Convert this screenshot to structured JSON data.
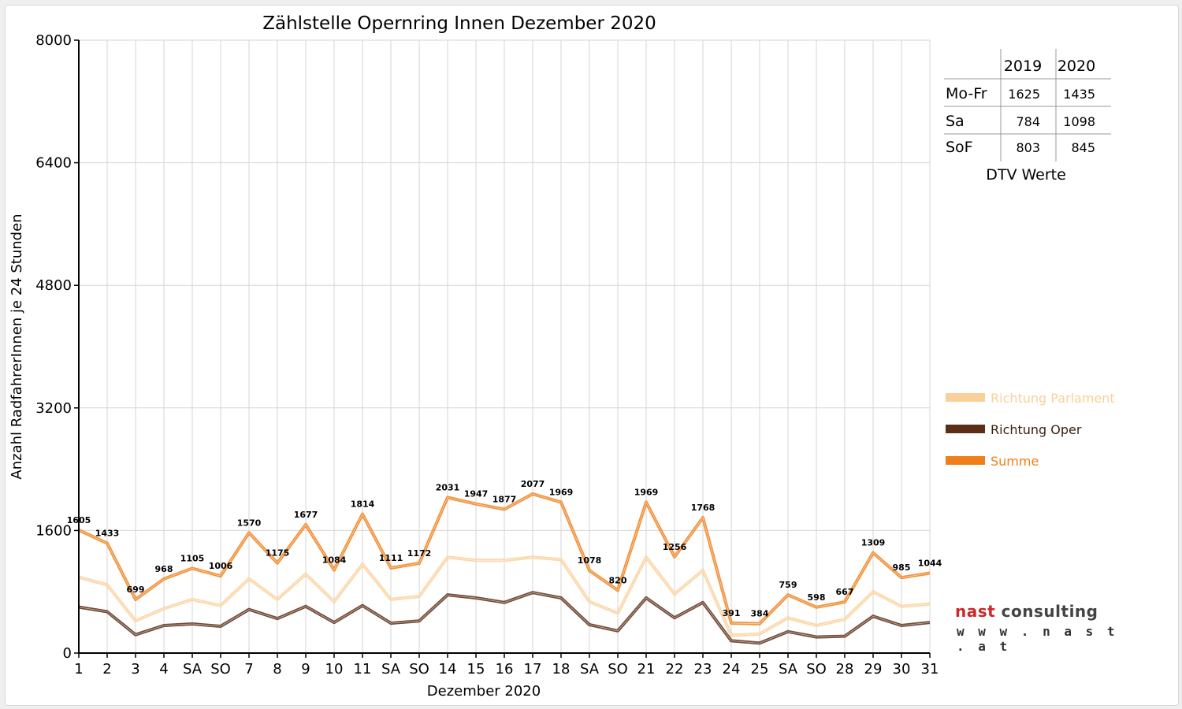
{
  "chart_data": {
    "type": "line",
    "title": "Zählstelle Opernring Innen Dezember 2020",
    "xlabel": "Dezember 2020",
    "ylabel": "Anzahl RadfahrerInnen je 24 Stunden",
    "ylim": [
      0,
      8000
    ],
    "yticks": [
      "0",
      "1600",
      "3200",
      "4800",
      "6400",
      "8000"
    ],
    "grid": true,
    "legend_position": "right",
    "categories": [
      "1",
      "2",
      "3",
      "4",
      "SA",
      "SO",
      "7",
      "8",
      "9",
      "10",
      "11",
      "SA",
      "SO",
      "14",
      "15",
      "16",
      "17",
      "18",
      "SA",
      "SO",
      "21",
      "22",
      "23",
      "24",
      "25",
      "SA",
      "SO",
      "28",
      "29",
      "30",
      "31"
    ],
    "red_categories": [
      5,
      7,
      12,
      19,
      24,
      26
    ],
    "series": [
      {
        "name": "Richtung Parlament",
        "color": "#fad09a",
        "values": [
          990,
          890,
          420,
          580,
          700,
          620,
          970,
          700,
          1030,
          670,
          1160,
          700,
          740,
          1250,
          1210,
          1210,
          1250,
          1220,
          670,
          520,
          1250,
          770,
          1080,
          230,
          250,
          460,
          360,
          440,
          800,
          610,
          640
        ]
      },
      {
        "name": "Richtung Oper",
        "color": "#5a2e17",
        "values": [
          600,
          540,
          240,
          360,
          380,
          350,
          570,
          450,
          610,
          400,
          620,
          390,
          420,
          760,
          720,
          660,
          790,
          720,
          370,
          290,
          720,
          460,
          660,
          160,
          130,
          280,
          210,
          220,
          480,
          360,
          400
        ]
      },
      {
        "name": "Summe",
        "color": "#f07f1a",
        "values": [
          1605,
          1433,
          699,
          968,
          1105,
          1006,
          1570,
          1175,
          1677,
          1084,
          1814,
          1111,
          1172,
          2031,
          1947,
          1877,
          2077,
          1969,
          1078,
          820,
          1969,
          1256,
          1768,
          391,
          384,
          759,
          598,
          667,
          1309,
          985,
          1044
        ]
      }
    ],
    "data_labels": [
      "1605",
      "1433",
      "699",
      "968",
      "1105",
      "1006",
      "1570",
      "1175",
      "1677",
      "1084",
      "1814",
      "1111",
      "1172",
      "2031",
      "1947",
      "1877",
      "2077",
      "1969",
      "1078",
      "820",
      "1969",
      "1256",
      "1768",
      "391",
      "384",
      "759",
      "598",
      "667",
      "1309",
      "985",
      "1044"
    ]
  },
  "dtv_table": {
    "headers": [
      "2019",
      "2020"
    ],
    "rows": [
      {
        "label": "Mo-Fr",
        "v2019": "1625",
        "v2020": "1435"
      },
      {
        "label": "Sa",
        "v2019": "784",
        "v2020": "1098"
      },
      {
        "label": "SoF",
        "v2019": "803",
        "v2020": "845"
      }
    ],
    "caption": "DTV Werte"
  },
  "logo": {
    "brand_part1": "nast",
    "brand_part2": "consulting",
    "url": "w w w . n a s t . a t"
  }
}
